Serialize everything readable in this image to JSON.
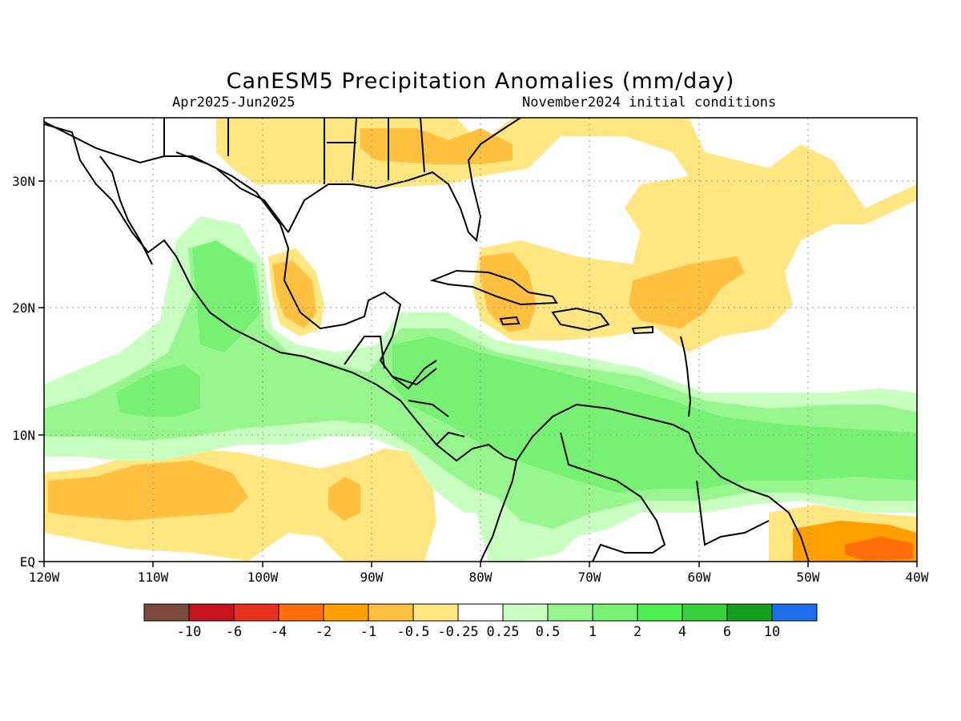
{
  "title": "CanESM5 Precipitation Anomalies (mm/day)",
  "subtitle_left": "Apr2025-Jun2025",
  "subtitle_right": "November2024 initial conditions",
  "map": {
    "type": "heatmap",
    "region": "Central America, Caribbean Sea and Gulf of Mexico",
    "lon_range": [
      -120,
      -40
    ],
    "lat_range": [
      0,
      35
    ],
    "lon_ticks": [
      "120W",
      "110W",
      "100W",
      "90W",
      "80W",
      "70W",
      "60W",
      "50W",
      "40W"
    ],
    "lat_ticks": [
      "EQ",
      "10N",
      "20N",
      "30N"
    ],
    "grid": true
  },
  "colorbar": {
    "labels": [
      "-10",
      "-6",
      "-4",
      "-2",
      "-1",
      "-0.5",
      "-0.25",
      "0.25",
      "0.5",
      "1",
      "2",
      "4",
      "6",
      "10"
    ],
    "colors": [
      "#7a4a3f",
      "#c8141e",
      "#e6321e",
      "#ff6e0a",
      "#ffa000",
      "#ffc040",
      "#ffe680",
      "#ffffff",
      "#c8ffc0",
      "#96f58c",
      "#78f073",
      "#50f050",
      "#37d23c",
      "#14a01e",
      "#1e6eeb"
    ]
  },
  "anomaly_colors": {
    "dry_light": "#ffe680",
    "dry_mid": "#ffc040",
    "dry_strong": "#ffa000",
    "dry_heavy": "#ff6e0a",
    "wet_light": "#c8ffc0",
    "wet_mid": "#96f58c",
    "wet_strong": "#78f073"
  }
}
